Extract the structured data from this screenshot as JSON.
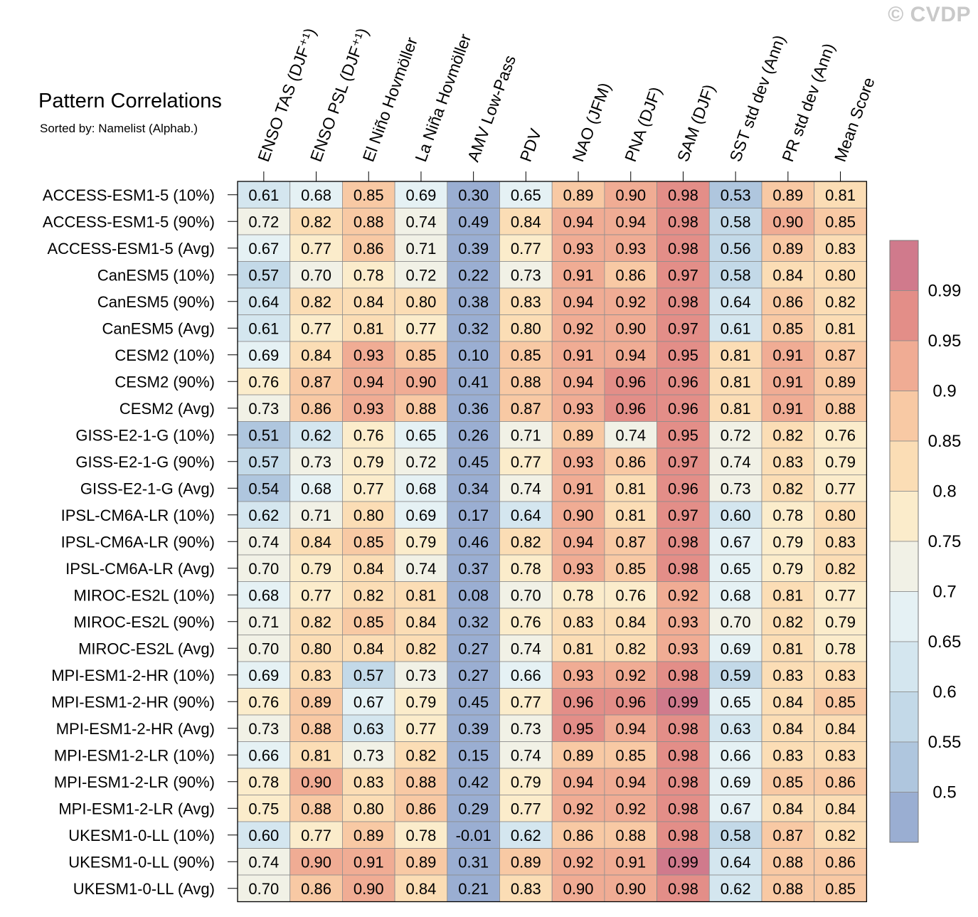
{
  "watermark": "© CVDP",
  "chart_data": {
    "type": "heatmap",
    "title": "Pattern Correlations",
    "subtitle": "Sorted by: Namelist (Alphab.)",
    "columns": [
      "ENSO TAS (DJF⁺¹)",
      "ENSO PSL (DJF⁺¹)",
      "El Niño Hovmöller",
      "La Niña Hovmöller",
      "AMV Low-Pass",
      "PDV",
      "NAO (JFM)",
      "PNA (DJF)",
      "SAM (DJF)",
      "SST std dev (Ann)",
      "PR std dev (Ann)",
      "Mean Score"
    ],
    "rows": [
      {
        "name": "ACCESS-ESM1-5 (10%)",
        "values": [
          "0.61",
          "0.68",
          "0.85",
          "0.69",
          "0.30",
          "0.65",
          "0.89",
          "0.90",
          "0.98",
          "0.53",
          "0.89",
          "0.81"
        ]
      },
      {
        "name": "ACCESS-ESM1-5 (90%)",
        "values": [
          "0.72",
          "0.82",
          "0.88",
          "0.74",
          "0.49",
          "0.84",
          "0.94",
          "0.94",
          "0.98",
          "0.58",
          "0.90",
          "0.85"
        ]
      },
      {
        "name": "ACCESS-ESM1-5 (Avg)",
        "values": [
          "0.67",
          "0.77",
          "0.86",
          "0.71",
          "0.39",
          "0.77",
          "0.93",
          "0.93",
          "0.98",
          "0.56",
          "0.89",
          "0.83"
        ]
      },
      {
        "name": "CanESM5 (10%)",
        "values": [
          "0.57",
          "0.70",
          "0.78",
          "0.72",
          "0.22",
          "0.73",
          "0.91",
          "0.86",
          "0.97",
          "0.58",
          "0.84",
          "0.80"
        ]
      },
      {
        "name": "CanESM5 (90%)",
        "values": [
          "0.64",
          "0.82",
          "0.84",
          "0.80",
          "0.38",
          "0.83",
          "0.94",
          "0.92",
          "0.98",
          "0.64",
          "0.86",
          "0.82"
        ]
      },
      {
        "name": "CanESM5 (Avg)",
        "values": [
          "0.61",
          "0.77",
          "0.81",
          "0.77",
          "0.32",
          "0.80",
          "0.92",
          "0.90",
          "0.97",
          "0.61",
          "0.85",
          "0.81"
        ]
      },
      {
        "name": "CESM2 (10%)",
        "values": [
          "0.69",
          "0.84",
          "0.93",
          "0.85",
          "0.10",
          "0.85",
          "0.91",
          "0.94",
          "0.95",
          "0.81",
          "0.91",
          "0.87"
        ]
      },
      {
        "name": "CESM2 (90%)",
        "values": [
          "0.76",
          "0.87",
          "0.94",
          "0.90",
          "0.41",
          "0.88",
          "0.94",
          "0.96",
          "0.96",
          "0.81",
          "0.91",
          "0.89"
        ]
      },
      {
        "name": "CESM2 (Avg)",
        "values": [
          "0.73",
          "0.86",
          "0.93",
          "0.88",
          "0.36",
          "0.87",
          "0.93",
          "0.96",
          "0.96",
          "0.81",
          "0.91",
          "0.88"
        ]
      },
      {
        "name": "GISS-E2-1-G (10%)",
        "values": [
          "0.51",
          "0.62",
          "0.76",
          "0.65",
          "0.26",
          "0.71",
          "0.89",
          "0.74",
          "0.95",
          "0.72",
          "0.82",
          "0.76"
        ]
      },
      {
        "name": "GISS-E2-1-G (90%)",
        "values": [
          "0.57",
          "0.73",
          "0.79",
          "0.72",
          "0.45",
          "0.77",
          "0.93",
          "0.86",
          "0.97",
          "0.74",
          "0.83",
          "0.79"
        ]
      },
      {
        "name": "GISS-E2-1-G (Avg)",
        "values": [
          "0.54",
          "0.68",
          "0.77",
          "0.68",
          "0.34",
          "0.74",
          "0.91",
          "0.81",
          "0.96",
          "0.73",
          "0.82",
          "0.77"
        ]
      },
      {
        "name": "IPSL-CM6A-LR (10%)",
        "values": [
          "0.62",
          "0.71",
          "0.80",
          "0.69",
          "0.17",
          "0.64",
          "0.90",
          "0.81",
          "0.97",
          "0.60",
          "0.78",
          "0.80"
        ]
      },
      {
        "name": "IPSL-CM6A-LR (90%)",
        "values": [
          "0.74",
          "0.84",
          "0.85",
          "0.79",
          "0.46",
          "0.82",
          "0.94",
          "0.87",
          "0.98",
          "0.67",
          "0.79",
          "0.83"
        ]
      },
      {
        "name": "IPSL-CM6A-LR (Avg)",
        "values": [
          "0.70",
          "0.79",
          "0.84",
          "0.74",
          "0.37",
          "0.78",
          "0.93",
          "0.85",
          "0.98",
          "0.65",
          "0.79",
          "0.82"
        ]
      },
      {
        "name": "MIROC-ES2L (10%)",
        "values": [
          "0.68",
          "0.77",
          "0.82",
          "0.81",
          "0.08",
          "0.70",
          "0.78",
          "0.76",
          "0.92",
          "0.68",
          "0.81",
          "0.77"
        ]
      },
      {
        "name": "MIROC-ES2L (90%)",
        "values": [
          "0.71",
          "0.82",
          "0.85",
          "0.84",
          "0.32",
          "0.76",
          "0.83",
          "0.84",
          "0.93",
          "0.70",
          "0.82",
          "0.79"
        ]
      },
      {
        "name": "MIROC-ES2L (Avg)",
        "values": [
          "0.70",
          "0.80",
          "0.84",
          "0.82",
          "0.27",
          "0.74",
          "0.81",
          "0.82",
          "0.93",
          "0.69",
          "0.81",
          "0.78"
        ]
      },
      {
        "name": "MPI-ESM1-2-HR (10%)",
        "values": [
          "0.69",
          "0.83",
          "0.57",
          "0.73",
          "0.27",
          "0.66",
          "0.93",
          "0.92",
          "0.98",
          "0.59",
          "0.83",
          "0.83"
        ]
      },
      {
        "name": "MPI-ESM1-2-HR (90%)",
        "values": [
          "0.76",
          "0.89",
          "0.67",
          "0.79",
          "0.45",
          "0.77",
          "0.96",
          "0.96",
          "0.99",
          "0.65",
          "0.84",
          "0.85"
        ]
      },
      {
        "name": "MPI-ESM1-2-HR (Avg)",
        "values": [
          "0.73",
          "0.88",
          "0.63",
          "0.77",
          "0.39",
          "0.73",
          "0.95",
          "0.94",
          "0.98",
          "0.63",
          "0.84",
          "0.84"
        ]
      },
      {
        "name": "MPI-ESM1-2-LR (10%)",
        "values": [
          "0.66",
          "0.81",
          "0.73",
          "0.82",
          "0.15",
          "0.74",
          "0.89",
          "0.85",
          "0.98",
          "0.66",
          "0.83",
          "0.83"
        ]
      },
      {
        "name": "MPI-ESM1-2-LR (90%)",
        "values": [
          "0.78",
          "0.90",
          "0.83",
          "0.88",
          "0.42",
          "0.79",
          "0.94",
          "0.94",
          "0.98",
          "0.69",
          "0.85",
          "0.86"
        ]
      },
      {
        "name": "MPI-ESM1-2-LR (Avg)",
        "values": [
          "0.75",
          "0.88",
          "0.80",
          "0.86",
          "0.29",
          "0.77",
          "0.92",
          "0.92",
          "0.98",
          "0.67",
          "0.84",
          "0.84"
        ]
      },
      {
        "name": "UKESM1-0-LL (10%)",
        "values": [
          "0.60",
          "0.77",
          "0.89",
          "0.78",
          "-0.01",
          "0.62",
          "0.86",
          "0.88",
          "0.98",
          "0.58",
          "0.87",
          "0.82"
        ]
      },
      {
        "name": "UKESM1-0-LL (90%)",
        "values": [
          "0.74",
          "0.90",
          "0.91",
          "0.89",
          "0.31",
          "0.89",
          "0.92",
          "0.91",
          "0.99",
          "0.64",
          "0.88",
          "0.86"
        ]
      },
      {
        "name": "UKESM1-0-LL (Avg)",
        "values": [
          "0.70",
          "0.86",
          "0.90",
          "0.84",
          "0.21",
          "0.83",
          "0.90",
          "0.90",
          "0.98",
          "0.62",
          "0.88",
          "0.85"
        ]
      }
    ],
    "colorbar": {
      "labels": [
        "0.99",
        "0.95",
        "0.9",
        "0.85",
        "0.8",
        "0.75",
        "0.7",
        "0.65",
        "0.6",
        "0.55",
        "0.5"
      ],
      "levels": [
        0.5,
        0.55,
        0.6,
        0.65,
        0.7,
        0.75,
        0.8,
        0.85,
        0.9,
        0.95,
        0.99
      ],
      "colors": [
        "#9aaed2",
        "#afc6de",
        "#c3d9e8",
        "#d4e6ef",
        "#e5f1f4",
        "#f1f1e6",
        "#fbeccb",
        "#fbddb5",
        "#f8c9a4",
        "#f0ac94",
        "#e38e88",
        "#d07a8c"
      ]
    }
  }
}
